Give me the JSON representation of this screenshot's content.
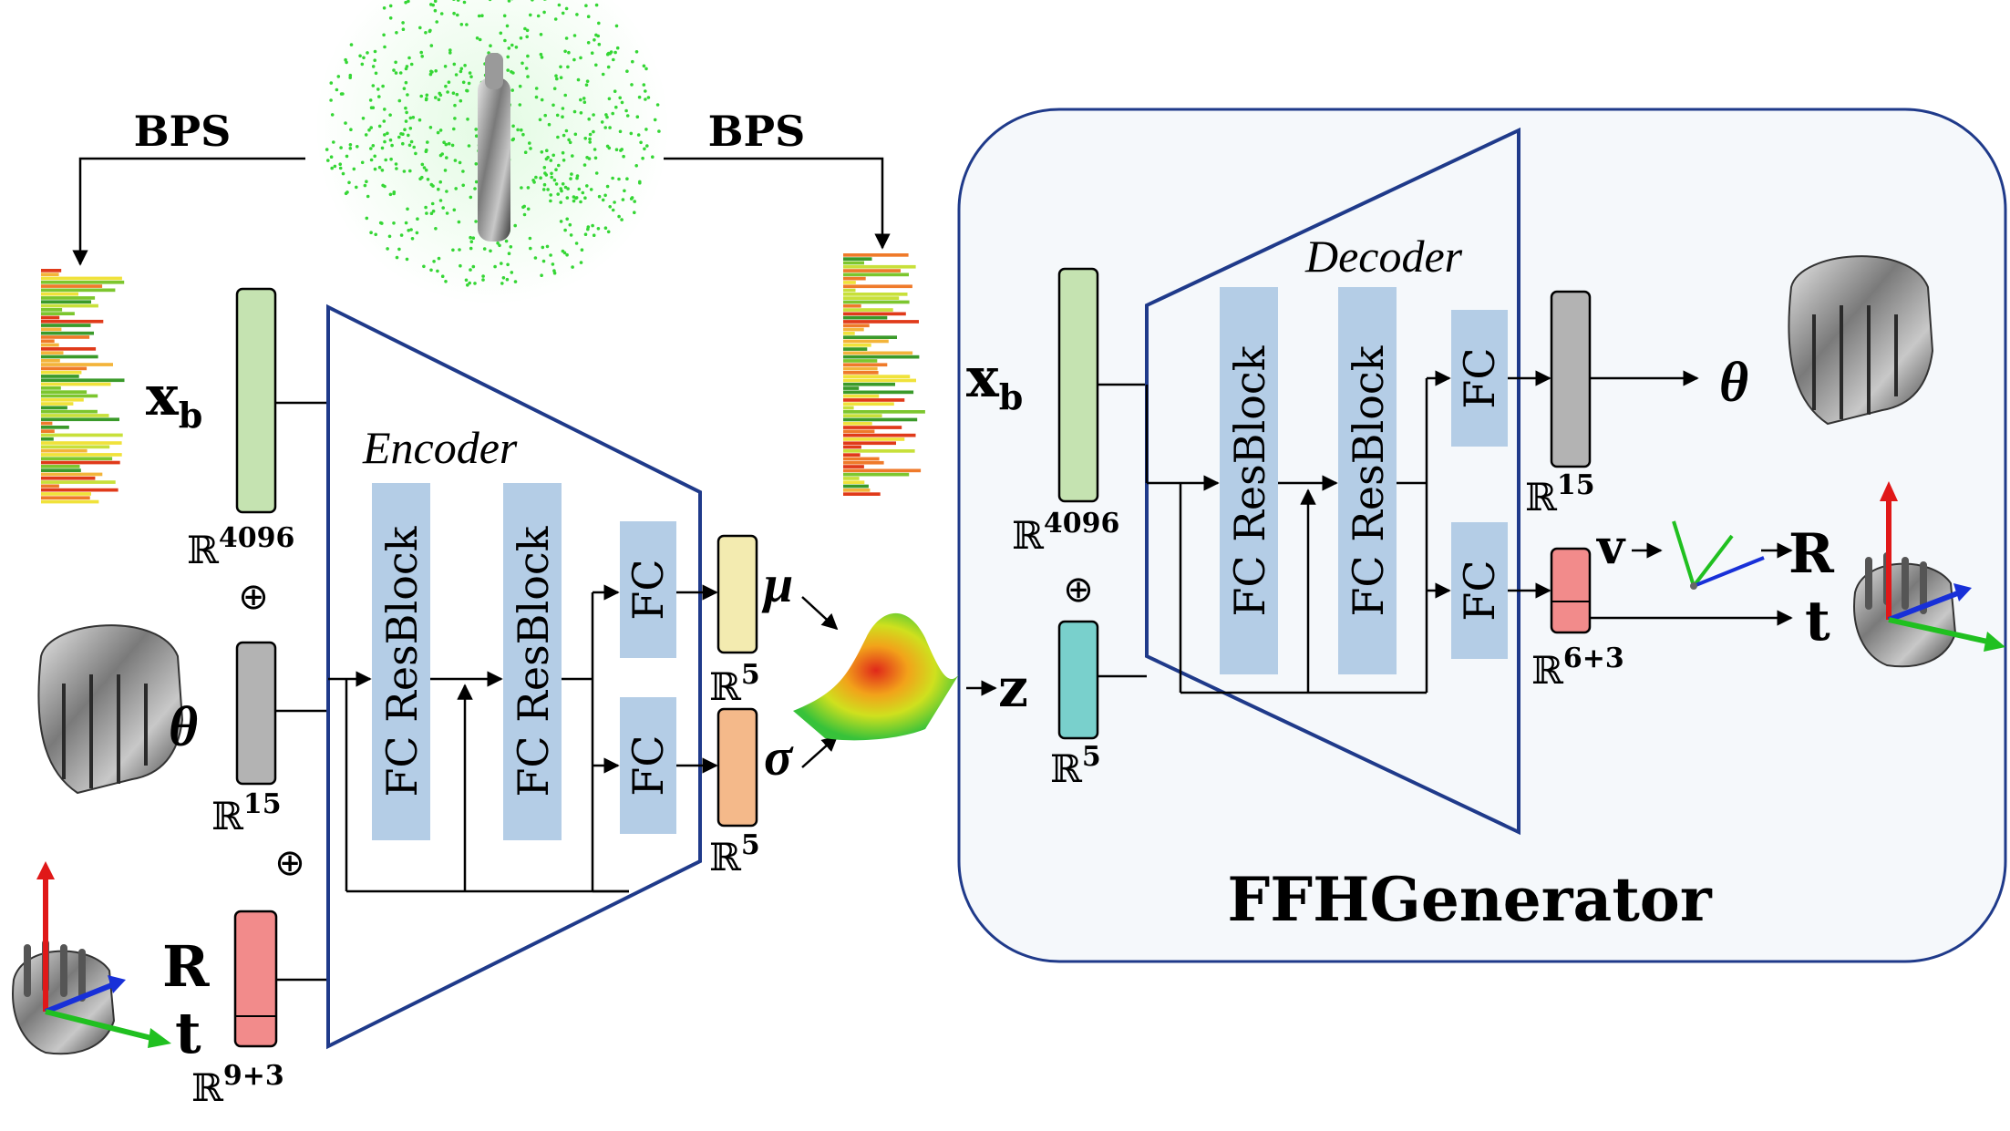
{
  "bps": {
    "left_label": "BPS",
    "right_label": "BPS"
  },
  "encoder": {
    "title": "Encoder",
    "blocks": [
      "FC ResBlock",
      "FC ResBlock"
    ],
    "fc_top": "FC",
    "fc_bottom": "FC"
  },
  "decoder": {
    "title": "Decoder",
    "blocks": [
      "FC ResBlock",
      "FC ResBlock"
    ],
    "fc_top": "FC",
    "fc_bottom": "FC"
  },
  "inputs": {
    "xb": {
      "symbol": "x",
      "sub": "b",
      "space": "ℝ",
      "dim": "4096"
    },
    "theta": {
      "symbol": "θ",
      "space": "ℝ",
      "dim": "15"
    },
    "Rt": {
      "R": "R",
      "t": "t",
      "space": "ℝ",
      "dim": "9+3"
    },
    "oplus": "⊕"
  },
  "latent": {
    "mu": {
      "symbol": "μ",
      "space": "ℝ",
      "dim": "5"
    },
    "sigma": {
      "symbol": "σ",
      "space": "ℝ",
      "dim": "5"
    }
  },
  "generator": {
    "title": "FFHGenerator",
    "xb": {
      "symbol": "x",
      "sub": "b",
      "space": "ℝ",
      "dim": "4096"
    },
    "z": {
      "symbol": "z",
      "space": "ℝ",
      "dim": "5"
    },
    "theta_out": {
      "symbol": "θ",
      "space": "ℝ",
      "dim": "15"
    },
    "pose_out": {
      "space": "ℝ",
      "dim": "6+3",
      "v": "v",
      "R": "R",
      "t": "t"
    },
    "oplus": "⊕"
  },
  "colors": {
    "frame_blue": "#1f3a8a",
    "block_blue": "#b4cde6",
    "green_vec": "#c5e3b1",
    "gray_vec": "#b3b3b3",
    "red_vec": "#f28b8b",
    "mu_vec": "#f3ebb0",
    "sigma_vec": "#f4b98a",
    "z_vec": "#79d0cc",
    "panel_bg": "#f5f8fb"
  },
  "icons": [
    "bps-point-cloud-icon",
    "bps-bar-icon",
    "hand-icon",
    "axes-icon",
    "gaussian-icon"
  ]
}
